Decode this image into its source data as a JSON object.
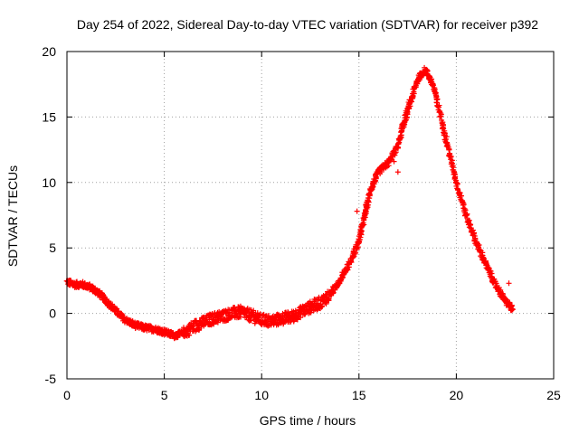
{
  "chart_data": {
    "type": "scatter",
    "title": "Day 254 of 2022, Sidereal Day-to-day VTEC variation (SDTVAR) for receiver p392",
    "xlabel": "GPS time / hours",
    "ylabel": "SDTVAR / TECUs",
    "xlim": [
      0,
      25
    ],
    "ylim": [
      -5,
      20
    ],
    "xticks": [
      0,
      5,
      10,
      15,
      20,
      25
    ],
    "yticks": [
      -5,
      0,
      5,
      10,
      15,
      20
    ],
    "grid": true,
    "marker": "+",
    "color": "#ff0000",
    "series": [
      {
        "name": "SDTVAR",
        "trend": [
          [
            0.0,
            2.4
          ],
          [
            0.4,
            2.2
          ],
          [
            0.8,
            2.2
          ],
          [
            1.2,
            2.0
          ],
          [
            1.6,
            1.6
          ],
          [
            2.0,
            1.0
          ],
          [
            2.5,
            0.2
          ],
          [
            3.0,
            -0.5
          ],
          [
            3.5,
            -0.9
          ],
          [
            4.0,
            -1.1
          ],
          [
            4.5,
            -1.2
          ],
          [
            5.0,
            -1.4
          ],
          [
            5.5,
            -1.7
          ],
          [
            6.0,
            -1.5
          ],
          [
            6.5,
            -1.0
          ],
          [
            7.0,
            -0.7
          ],
          [
            7.5,
            -0.4
          ],
          [
            8.0,
            -0.2
          ],
          [
            8.5,
            0.0
          ],
          [
            9.0,
            0.1
          ],
          [
            9.5,
            -0.2
          ],
          [
            10.0,
            -0.5
          ],
          [
            10.5,
            -0.6
          ],
          [
            11.0,
            -0.4
          ],
          [
            11.5,
            -0.3
          ],
          [
            12.0,
            0.1
          ],
          [
            12.5,
            0.5
          ],
          [
            13.0,
            0.8
          ],
          [
            13.5,
            1.4
          ],
          [
            14.0,
            2.5
          ],
          [
            14.5,
            3.8
          ],
          [
            15.0,
            5.5
          ],
          [
            15.3,
            7.5
          ],
          [
            15.6,
            9.5
          ],
          [
            16.0,
            10.8
          ],
          [
            16.5,
            11.5
          ],
          [
            17.0,
            12.8
          ],
          [
            17.3,
            14.5
          ],
          [
            17.6,
            16.0
          ],
          [
            18.0,
            17.8
          ],
          [
            18.4,
            18.6
          ],
          [
            18.8,
            17.5
          ],
          [
            19.2,
            15.0
          ],
          [
            19.6,
            12.5
          ],
          [
            20.0,
            10.0
          ],
          [
            20.5,
            7.5
          ],
          [
            21.0,
            5.5
          ],
          [
            21.5,
            3.8
          ],
          [
            22.0,
            2.2
          ],
          [
            22.5,
            1.0
          ],
          [
            22.9,
            0.3
          ]
        ],
        "outliers": [
          [
            17.0,
            10.8
          ],
          [
            16.8,
            11.6
          ],
          [
            14.9,
            7.8
          ],
          [
            22.7,
            2.3
          ],
          [
            19.3,
            14.6
          ]
        ]
      }
    ]
  }
}
